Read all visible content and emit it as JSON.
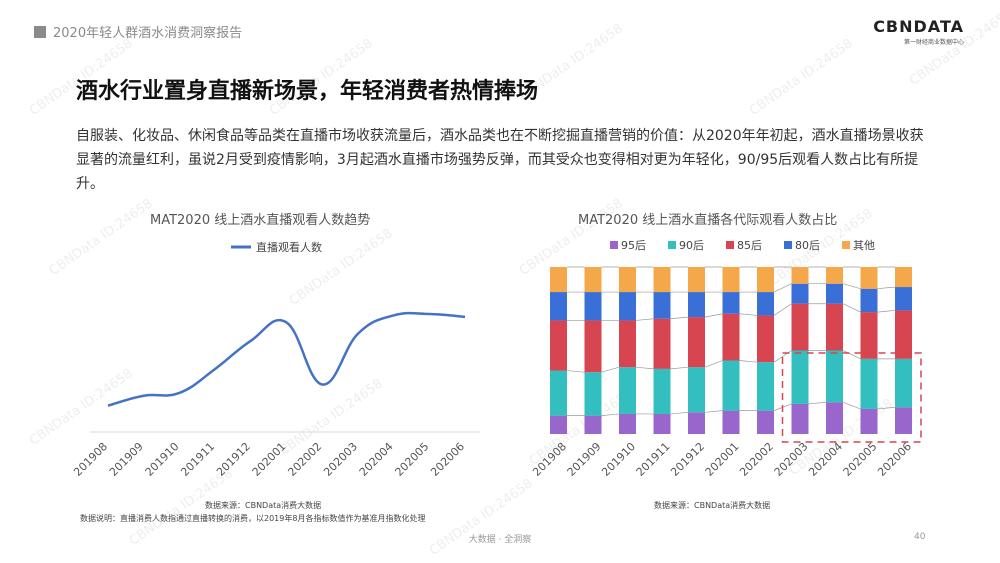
{
  "header": {
    "report_title": "2020年轻人群酒水消费洞察报告"
  },
  "logo": {
    "main": "CBNDATA",
    "sub": "第一财经商业数据中心"
  },
  "headline": "酒水行业置身直播新场景，年轻消费者热情捧场",
  "paragraph": "自服装、化妆品、休闲食品等品类在直播市场收获流量后，酒水品类也在不断挖掘直播营销的价值：从2020年年初起，酒水直播场景收获显著的流量红利，虽说2月受到疫情影响，3月起酒水直播市场强势反弹，而其受众也变得相对更为年轻化，90/95后观看人数占比有所提升。",
  "watermark": "CBNData ID:24658",
  "chart_data": [
    {
      "type": "line",
      "title": "MAT2020 线上酒水直播观看人数趋势",
      "legend_position": "top",
      "grid": false,
      "categories": [
        "201908",
        "201909",
        "201910",
        "201911",
        "201912",
        "202001",
        "202002",
        "202003",
        "202004",
        "202005",
        "202006"
      ],
      "series": [
        {
          "name": "直播观看人数",
          "color": "#4472c4",
          "values": [
            0.3,
            1.0,
            1.2,
            2.9,
            4.9,
            6.2,
            1.8,
            5.4,
            6.7,
            6.8,
            6.6
          ]
        }
      ],
      "ylim": [
        -1.5,
        9
      ]
    },
    {
      "type": "bar",
      "stacked": true,
      "normalized": true,
      "title": "MAT2020 线上酒水直播各代际观看人数占比",
      "legend_position": "top",
      "grid": false,
      "categories": [
        "201908",
        "201909",
        "201910",
        "201911",
        "201912",
        "202001",
        "202002",
        "202003",
        "202004",
        "202005",
        "202006"
      ],
      "series": [
        {
          "name": "95后",
          "color": "#9966cc",
          "values": [
            11,
            11,
            12,
            12,
            13,
            14,
            14,
            18,
            19,
            15,
            16
          ]
        },
        {
          "name": "90后",
          "color": "#33bfbf",
          "values": [
            27,
            26,
            28,
            27,
            27,
            30,
            29,
            32,
            31,
            30,
            29
          ]
        },
        {
          "name": "85后",
          "color": "#d64550",
          "values": [
            30,
            31,
            28,
            30,
            30,
            28,
            28,
            28,
            28,
            28,
            29
          ]
        },
        {
          "name": "80后",
          "color": "#3a6fd8",
          "values": [
            17,
            17,
            17,
            16,
            15,
            13,
            14,
            12,
            12,
            14,
            14
          ]
        },
        {
          "name": "其他",
          "color": "#f5a84a",
          "values": [
            15,
            15,
            15,
            15,
            15,
            15,
            15,
            10,
            10,
            13,
            12
          ]
        }
      ],
      "ylim": [
        0,
        100
      ],
      "highlight": {
        "from": "202003",
        "to": "202006",
        "style": "dashed",
        "color": "#d64550"
      }
    }
  ],
  "notes": {
    "left_source": "数据来源：CBNData消费大数据",
    "left_explain": "数据说明：直播消费人数指通过直播转换的消费，以2019年8月各指标数值作为基准月指数化处理",
    "right_source": "数据来源：CBNData消费大数据"
  },
  "footer": {
    "text": "大数据 · 全洞察",
    "page": "40"
  }
}
